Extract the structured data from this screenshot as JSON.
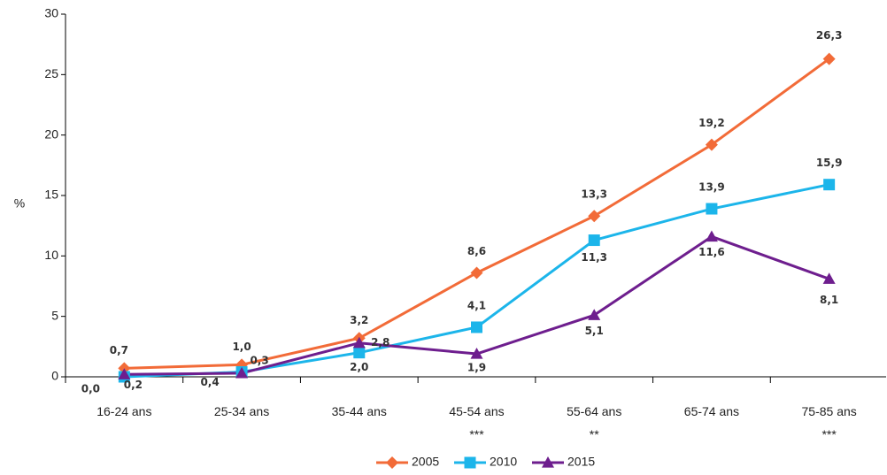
{
  "chart_data": {
    "type": "line",
    "title": "",
    "xlabel": "",
    "ylabel": "%",
    "ylim": [
      0,
      30
    ],
    "yticks": [
      0,
      5,
      10,
      15,
      20,
      25,
      30
    ],
    "categories": [
      "16-24 ans",
      "25-34 ans",
      "35-44 ans",
      "45-54 ans",
      "55-64 ans",
      "65-74 ans",
      "75-85 ans"
    ],
    "significance": [
      "",
      "",
      "",
      "***",
      "**",
      "",
      "***"
    ],
    "grid": false,
    "legend_position": "bottom",
    "series": [
      {
        "name": "2005",
        "color": "#F26B38",
        "marker": "diamond",
        "values": [
          0.7,
          1.0,
          3.2,
          8.6,
          13.3,
          19.2,
          26.3
        ],
        "labels": [
          "0,7",
          "1,0",
          "3,2",
          "8,6",
          "13,3",
          "19,2",
          "26,3"
        ]
      },
      {
        "name": "2010",
        "color": "#1CB5EA",
        "marker": "square",
        "values": [
          0.0,
          0.4,
          2.0,
          4.1,
          11.3,
          13.9,
          15.9
        ],
        "labels": [
          "0,0",
          "0,4",
          "2,0",
          "4,1",
          "11,3",
          "13,9",
          "15,9"
        ]
      },
      {
        "name": "2015",
        "color": "#6E1E8E",
        "marker": "triangle",
        "values": [
          0.2,
          0.3,
          2.8,
          1.9,
          5.1,
          11.6,
          8.1
        ],
        "labels": [
          "0,2",
          "0,3",
          "2,8",
          "1,9",
          "5,1",
          "11,6",
          "8,1"
        ]
      }
    ]
  }
}
